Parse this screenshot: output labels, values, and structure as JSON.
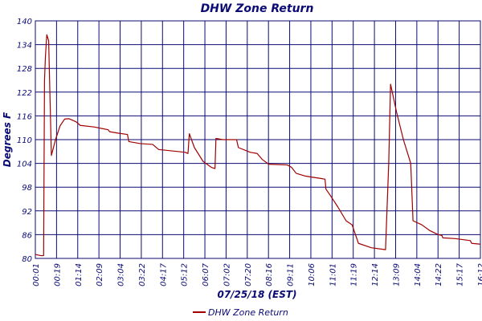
{
  "chart_data": {
    "type": "line",
    "title": "DHW Zone Return",
    "xlabel": "07/25/18 (EST)",
    "ylabel": "Degrees F",
    "ylim": [
      80,
      140
    ],
    "yticks": [
      "140",
      "134",
      "128",
      "122",
      "116",
      "110",
      "104",
      "98",
      "92",
      "86",
      "80"
    ],
    "xlim": [
      "00:01",
      "16:12"
    ],
    "xticks": [
      "00:01",
      "00:19",
      "01:14",
      "02:09",
      "03:04",
      "03:22",
      "04:17",
      "05:12",
      "06:07",
      "07:02",
      "07:20",
      "08:16",
      "09:11",
      "10:06",
      "11:01",
      "11:19",
      "12:14",
      "13:09",
      "14:04",
      "14:22",
      "15:17",
      "16:12"
    ],
    "grid": true,
    "legend_position": "bottom-left",
    "series": [
      {
        "name": "DHW Zone Return",
        "color": "#a00000",
        "points": [
          [
            "00:01",
            81.0
          ],
          [
            "00:13",
            80.7
          ],
          [
            "00:19",
            80.7
          ],
          [
            "00:21",
            125.0
          ],
          [
            "00:23",
            131.0
          ],
          [
            "00:26",
            136.5
          ],
          [
            "00:30",
            135.0
          ],
          [
            "00:36",
            106.0
          ],
          [
            "00:45",
            110.0
          ],
          [
            "00:55",
            113.5
          ],
          [
            "01:05",
            115.2
          ],
          [
            "01:14",
            115.3
          ],
          [
            "01:30",
            114.5
          ],
          [
            "01:39",
            113.6
          ],
          [
            "02:09",
            113.2
          ],
          [
            "02:40",
            112.5
          ],
          [
            "02:43",
            112.0
          ],
          [
            "03:04",
            111.6
          ],
          [
            "03:22",
            111.3
          ],
          [
            "03:25",
            109.5
          ],
          [
            "03:50",
            109.0
          ],
          [
            "04:17",
            108.8
          ],
          [
            "04:30",
            107.5
          ],
          [
            "05:12",
            107.0
          ],
          [
            "05:28",
            106.8
          ],
          [
            "05:34",
            106.5
          ],
          [
            "05:37",
            111.5
          ],
          [
            "05:48",
            108.0
          ],
          [
            "06:07",
            104.5
          ],
          [
            "06:25",
            103.0
          ],
          [
            "06:33",
            102.7
          ],
          [
            "06:35",
            110.3
          ],
          [
            "06:50",
            110.0
          ],
          [
            "07:02",
            110.0
          ],
          [
            "07:20",
            110.0
          ],
          [
            "07:24",
            108.0
          ],
          [
            "07:50",
            106.8
          ],
          [
            "08:05",
            106.5
          ],
          [
            "08:16",
            105.0
          ],
          [
            "08:30",
            103.8
          ],
          [
            "09:11",
            103.6
          ],
          [
            "09:20",
            103.0
          ],
          [
            "09:30",
            101.5
          ],
          [
            "09:50",
            100.8
          ],
          [
            "10:06",
            100.5
          ],
          [
            "10:24",
            100.2
          ],
          [
            "10:33",
            100.0
          ],
          [
            "10:35",
            97.5
          ],
          [
            "10:44",
            96.0
          ],
          [
            "11:01",
            93.0
          ],
          [
            "11:19",
            89.5
          ],
          [
            "11:32",
            88.5
          ],
          [
            "11:46",
            83.8
          ],
          [
            "12:14",
            82.7
          ],
          [
            "12:45",
            82.2
          ],
          [
            "12:52",
            104.0
          ],
          [
            "12:56",
            124.0
          ],
          [
            "13:09",
            117.0
          ],
          [
            "13:24",
            110.0
          ],
          [
            "13:40",
            104.0
          ],
          [
            "13:45",
            89.5
          ],
          [
            "14:04",
            88.5
          ],
          [
            "14:22",
            87.0
          ],
          [
            "14:40",
            86.0
          ],
          [
            "14:48",
            85.8
          ],
          [
            "14:50",
            85.2
          ],
          [
            "15:17",
            85.0
          ],
          [
            "15:30",
            84.8
          ],
          [
            "15:50",
            84.5
          ],
          [
            "15:53",
            83.8
          ],
          [
            "16:12",
            83.6
          ]
        ]
      }
    ]
  }
}
